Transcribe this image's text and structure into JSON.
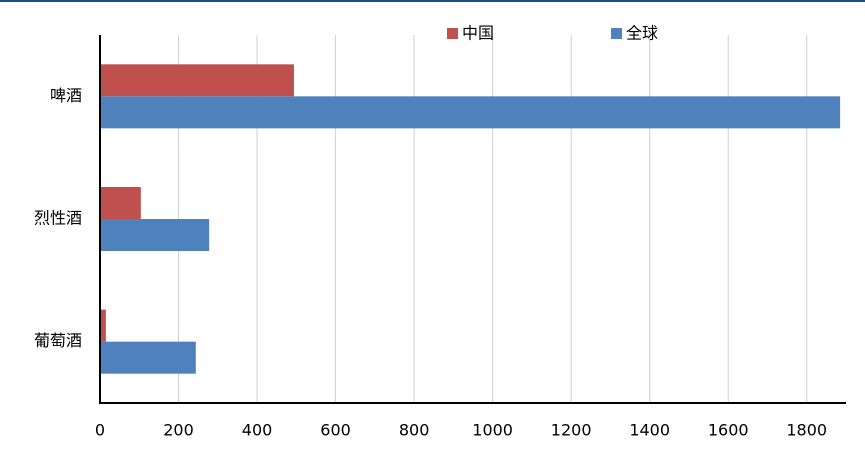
{
  "chart_data": {
    "type": "hbar",
    "categories": [
      "啤酒",
      "烈性酒",
      "葡萄酒"
    ],
    "series": [
      {
        "name": "中国",
        "color": "#c0504d",
        "values": [
          494,
          104,
          15
        ]
      },
      {
        "name": "全球",
        "color": "#4f81bd",
        "values": [
          1885,
          278,
          244
        ]
      }
    ],
    "xlim": [
      0,
      1900
    ],
    "xticks": [
      0,
      200,
      400,
      600,
      800,
      1000,
      1200,
      1400,
      1600,
      1800
    ],
    "grid": true
  }
}
